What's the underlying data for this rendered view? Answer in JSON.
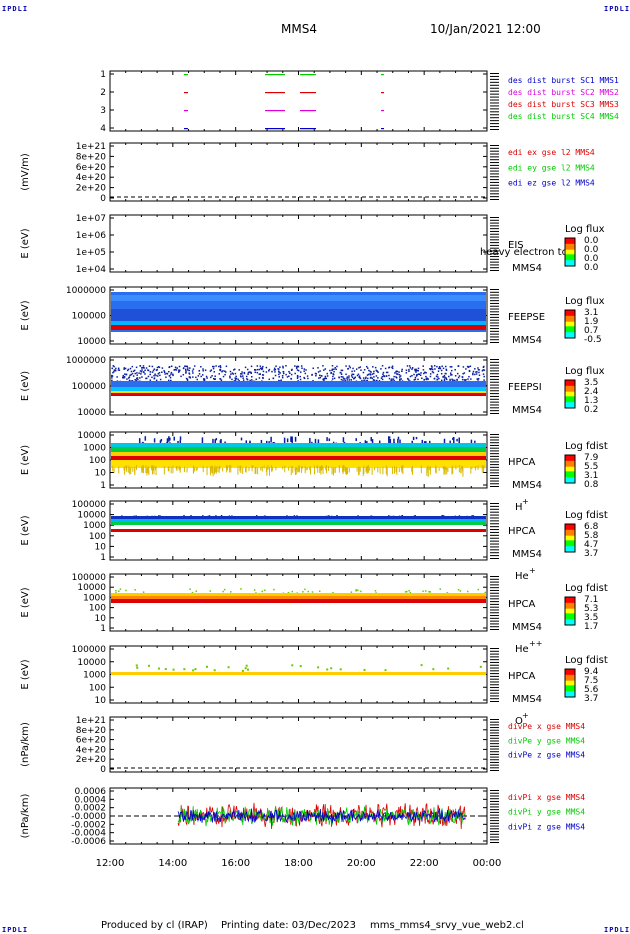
{
  "header": {
    "corner_label": "IPDLI",
    "spacecraft": "MMS4",
    "datetime": "10/Jan/2021 12:00"
  },
  "footer": {
    "produced_by": "Produced by cl (IRAP)",
    "printing_date": "Printing date: 03/Dec/2023",
    "script_name": "mms_mms4_srvy_vue_web2.cl"
  },
  "colors": {
    "red": "#dd0000",
    "green": "#00cc00",
    "blue": "#0000cc",
    "magenta": "#dd00dd",
    "orange": "#ff8800",
    "yellow": "#ffcc00"
  },
  "x_axis": {
    "ticks": [
      "12:00",
      "14:00",
      "16:00",
      "18:00",
      "20:00",
      "22:00",
      "00:00"
    ]
  },
  "chart_data": [
    {
      "type": "scatter",
      "id": "burst",
      "ylabel": "",
      "yticks": [
        "1",
        "2",
        "3",
        "4"
      ],
      "legend": [
        "des dist burst SC1 MMS1",
        "des dist burst SC2 MMS2",
        "des dist burst SC3 MMS3",
        "des dist burst SC4 MMS4"
      ],
      "legend_colors": [
        "#0000cc",
        "#dd00dd",
        "#dd0000",
        "#00cc00"
      ]
    },
    {
      "type": "line",
      "id": "edi",
      "ylabel": "(mV/m)",
      "yticks": [
        "1e+21",
        "8e+20",
        "6e+20",
        "4e+20",
        "2e+20",
        "0"
      ],
      "legend": [
        "edi ex gse l2 MMS4",
        "edi ey gse l2 MMS4",
        "edi ez gse l2 MMS4"
      ],
      "legend_colors": [
        "#dd0000",
        "#00cc00",
        "#0000cc"
      ]
    },
    {
      "type": "heatmap",
      "id": "eis",
      "ylabel": "E (eV)",
      "yticks": [
        "1e+07",
        "1e+06",
        "1e+05",
        "1e+04"
      ],
      "instrument": "EIS",
      "sublabel": "MMS4",
      "overlay_text": "heavy electron to",
      "cbar_title": "Log flux",
      "cbar_ticks": [
        "0.0",
        "0.0",
        "0.0",
        "0.0"
      ]
    },
    {
      "type": "heatmap",
      "id": "feepse",
      "ylabel": "E (eV)",
      "yticks": [
        "1000000",
        "100000",
        "10000"
      ],
      "instrument": "FEEPSE",
      "sublabel": "MMS4",
      "cbar_title": "Log flux",
      "cbar_ticks": [
        "3.1",
        "1.9",
        "0.7",
        "-0.5"
      ]
    },
    {
      "type": "heatmap",
      "id": "feepsi",
      "ylabel": "E (eV)",
      "yticks": [
        "1000000",
        "100000",
        "10000"
      ],
      "instrument": "FEEPSI",
      "sublabel": "MMS4",
      "cbar_title": "Log flux",
      "cbar_ticks": [
        "3.5",
        "2.4",
        "1.3",
        "0.2"
      ]
    },
    {
      "type": "heatmap",
      "id": "hpca_h",
      "ylabel": "E (eV)",
      "yticks": [
        "10000",
        "1000",
        "100",
        "10",
        "1"
      ],
      "instrument": "HPCA",
      "sublabel": "MMS4",
      "species": "H",
      "species_sup": "+",
      "cbar_title": "Log fdist",
      "cbar_ticks": [
        "7.9",
        "5.5",
        "3.1",
        "0.8"
      ]
    },
    {
      "type": "heatmap",
      "id": "hpca_he",
      "ylabel": "E (eV)",
      "yticks": [
        "100000",
        "10000",
        "1000",
        "100",
        "10",
        "1"
      ],
      "instrument": "HPCA",
      "sublabel": "MMS4",
      "species": "He",
      "species_sup": "+",
      "cbar_title": "Log fdist",
      "cbar_ticks": [
        "6.8",
        "5.8",
        "4.7",
        "3.7"
      ]
    },
    {
      "type": "heatmap",
      "id": "hpca_he2",
      "ylabel": "E (eV)",
      "yticks": [
        "100000",
        "10000",
        "1000",
        "100",
        "10",
        "1"
      ],
      "instrument": "HPCA",
      "sublabel": "MMS4",
      "species": "He",
      "species_sup": "++",
      "cbar_title": "Log fdist",
      "cbar_ticks": [
        "7.1",
        "5.3",
        "3.5",
        "1.7"
      ]
    },
    {
      "type": "heatmap",
      "id": "hpca_o",
      "ylabel": "E (eV)",
      "yticks": [
        "100000",
        "10000",
        "1000",
        "100",
        "10"
      ],
      "instrument": "HPCA",
      "sublabel": "MMS4",
      "species": "O",
      "species_sup": "+",
      "cbar_title": "Log fdist",
      "cbar_ticks": [
        "9.4",
        "7.5",
        "5.6",
        "3.7"
      ]
    },
    {
      "type": "line",
      "id": "divpe",
      "ylabel": "(nPa/km)",
      "yticks": [
        "1e+21",
        "8e+20",
        "6e+20",
        "4e+20",
        "2e+20",
        "0"
      ],
      "legend": [
        "divPe x gse MMS4",
        "divPe y gse MMS4",
        "divPe z gse MMS4"
      ],
      "legend_colors": [
        "#dd0000",
        "#00cc00",
        "#0000cc"
      ]
    },
    {
      "type": "line",
      "id": "divpi",
      "ylabel": "(nPa/km)",
      "yticks": [
        "0.0006",
        "0.0004",
        "0.0002",
        "-0.0000",
        "-0.0002",
        "-0.0004",
        "-0.0006"
      ],
      "legend": [
        "divPi x gse MMS4",
        "divPi y gse MMS4",
        "divPi z gse MMS4"
      ],
      "legend_colors": [
        "#dd0000",
        "#00cc00",
        "#0000cc"
      ]
    }
  ]
}
